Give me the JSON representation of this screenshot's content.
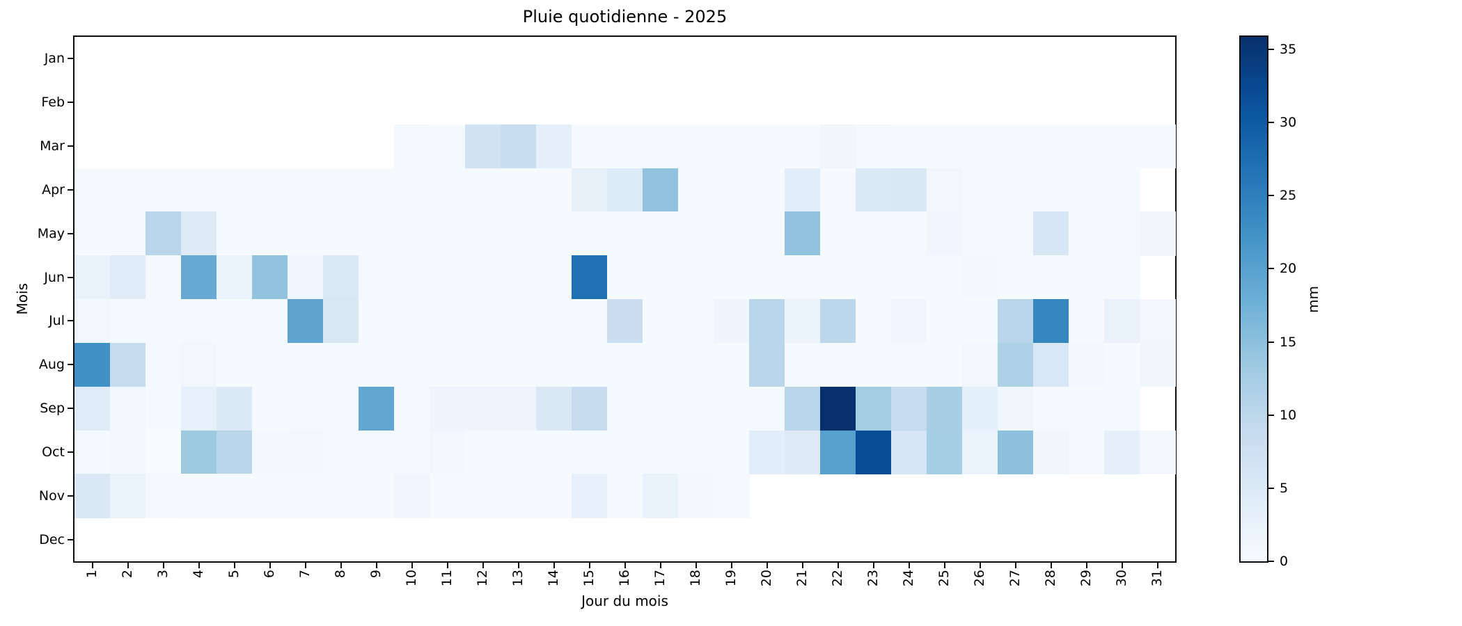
{
  "chart_data": {
    "type": "heatmap",
    "title": "Pluie quotidienne - 2025",
    "xlabel": "Jour du mois",
    "ylabel": "Mois",
    "colorbar_label": "mm",
    "colormap": "Blues",
    "vmin": 0,
    "vmax": 35.86,
    "colorbar_ticks": [
      0,
      5,
      10,
      15,
      20,
      25,
      30,
      35
    ],
    "months": [
      "Jan",
      "Feb",
      "Mar",
      "Apr",
      "May",
      "Jun",
      "Jul",
      "Aug",
      "Sep",
      "Oct",
      "Nov",
      "Dec"
    ],
    "days": [
      "1",
      "2",
      "3",
      "4",
      "5",
      "6",
      "7",
      "8",
      "9",
      "10",
      "11",
      "12",
      "13",
      "14",
      "15",
      "16",
      "17",
      "18",
      "19",
      "20",
      "21",
      "22",
      "23",
      "24",
      "25",
      "26",
      "27",
      "28",
      "29",
      "30",
      "31"
    ],
    "missing_cells_rendered": "white",
    "values": [
      [
        null,
        null,
        null,
        null,
        null,
        null,
        null,
        null,
        null,
        null,
        null,
        null,
        null,
        null,
        null,
        null,
        null,
        null,
        null,
        null,
        null,
        null,
        null,
        null,
        null,
        null,
        null,
        null,
        null,
        null,
        null
      ],
      [
        null,
        null,
        null,
        null,
        null,
        null,
        null,
        null,
        null,
        null,
        null,
        null,
        null,
        null,
        null,
        null,
        null,
        null,
        null,
        null,
        null,
        null,
        null,
        null,
        null,
        null,
        null,
        null,
        null,
        null,
        null
      ],
      [
        null,
        null,
        null,
        null,
        null,
        null,
        null,
        null,
        null,
        0.5,
        0.4,
        7.0,
        8.5,
        3.3,
        0.4,
        0.3,
        0.3,
        0.3,
        0.3,
        0.3,
        0.4,
        1.5,
        0.6,
        0.3,
        0.3,
        0.3,
        0.3,
        0.3,
        0.3,
        0.3,
        0.3
      ],
      [
        0.4,
        0.4,
        0.4,
        0.4,
        0.4,
        0.4,
        0.4,
        0.4,
        0.4,
        0.4,
        0.4,
        0.4,
        0.4,
        0.4,
        3.2,
        4.7,
        14.5,
        0.6,
        0.4,
        0.2,
        4.0,
        0.2,
        5.0,
        5.3,
        1.0,
        0.3,
        0.3,
        0.3,
        0.3,
        0.3,
        null
      ],
      [
        0.4,
        0.4,
        10.5,
        4.4,
        0.3,
        0.3,
        0.3,
        0.3,
        0.3,
        0.3,
        0.3,
        0.3,
        0.3,
        0.3,
        0.3,
        0.3,
        0.3,
        0.3,
        0.3,
        0.4,
        14.5,
        0.3,
        0.3,
        0.4,
        1.4,
        0.3,
        0.5,
        6.0,
        0.3,
        0.5,
        1.5
      ],
      [
        2.5,
        4.3,
        0.5,
        18.5,
        2.3,
        14.5,
        1.3,
        5.0,
        0.4,
        0.4,
        0.4,
        0.4,
        0.4,
        0.4,
        27.0,
        0.3,
        0.3,
        0.3,
        0.3,
        0.3,
        0.5,
        0.3,
        0.3,
        0.3,
        0.3,
        0.8,
        0.3,
        0.3,
        0.3,
        0.5,
        null
      ],
      [
        1.0,
        0.3,
        0.3,
        0.5,
        0.3,
        0.3,
        19.5,
        5.5,
        0.3,
        0.3,
        0.3,
        0.3,
        0.3,
        0.7,
        0.3,
        8.0,
        0.3,
        0.4,
        1.6,
        10.3,
        2.2,
        10.0,
        0.4,
        1.4,
        0.3,
        0.4,
        10.5,
        24.0,
        0.2,
        2.5,
        1.0
      ],
      [
        22.5,
        8.7,
        0.5,
        1.0,
        0.3,
        0.3,
        0.3,
        0.3,
        0.3,
        0.3,
        0.3,
        0.3,
        0.3,
        0.3,
        0.3,
        0.3,
        0.3,
        0.3,
        0.3,
        10.3,
        0.6,
        0.3,
        0.3,
        0.3,
        0.3,
        1.2,
        11.5,
        5.7,
        0.8,
        0.3,
        1.5
      ],
      [
        4.3,
        1.2,
        0.4,
        3.0,
        5.0,
        0.3,
        0.3,
        0.3,
        19.0,
        0.5,
        1.7,
        1.7,
        1.7,
        5.3,
        8.8,
        0.3,
        0.3,
        0.3,
        0.3,
        0.4,
        10.5,
        35.8,
        13.0,
        9.0,
        12.3,
        3.5,
        1.5,
        0.3,
        0.3,
        0.3,
        null
      ],
      [
        0.5,
        1.0,
        0.1,
        13.5,
        10.3,
        0.8,
        1.0,
        0.3,
        0.5,
        0.3,
        1.0,
        0.3,
        0.3,
        0.3,
        0.3,
        0.3,
        0.3,
        0.3,
        0.3,
        4.0,
        4.5,
        20.0,
        32.0,
        6.0,
        12.5,
        2.3,
        15.0,
        1.5,
        0.6,
        3.3,
        1.0
      ],
      [
        5.2,
        2.3,
        0.7,
        0.3,
        0.3,
        0.3,
        0.3,
        0.3,
        0.3,
        1.3,
        0.4,
        0.4,
        0.4,
        0.4,
        3.0,
        0.5,
        2.6,
        0.8,
        0.5,
        null,
        null,
        null,
        null,
        null,
        null,
        null,
        null,
        null,
        null,
        null,
        null
      ],
      [
        null,
        null,
        null,
        null,
        null,
        null,
        null,
        null,
        null,
        null,
        null,
        null,
        null,
        null,
        null,
        null,
        null,
        null,
        null,
        null,
        null,
        null,
        null,
        null,
        null,
        null,
        null,
        null,
        null,
        null,
        null
      ]
    ],
    "blues_colormap_anchors": [
      "#f7fbff",
      "#deebf7",
      "#c6dbef",
      "#9ecae1",
      "#6baed6",
      "#4292c6",
      "#2171b5",
      "#08519c",
      "#08306b"
    ],
    "legend_position": "right-colorbar",
    "grid": false
  }
}
